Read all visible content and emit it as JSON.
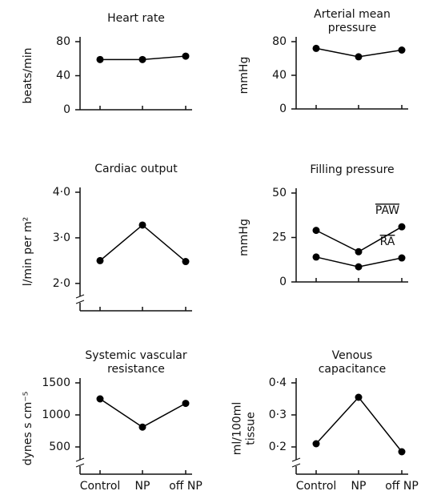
{
  "chart_data": [
    {
      "type": "line",
      "title": [
        "Heart rate"
      ],
      "ylabel": [
        "beats/min"
      ],
      "categories": [
        null,
        null,
        null
      ],
      "values": [
        59,
        59,
        63
      ],
      "color": "#000",
      "ylim": [
        0,
        80
      ],
      "yticks": [
        0,
        40,
        80
      ]
    },
    {
      "type": "line",
      "title": [
        "Arterial mean",
        "pressure"
      ],
      "ylabel": [
        "mmHg"
      ],
      "categories": [
        null,
        null,
        null
      ],
      "values": [
        72,
        62,
        70
      ],
      "color": "#000",
      "ylim": [
        0,
        80
      ],
      "yticks": [
        0,
        40,
        80
      ]
    },
    {
      "type": "line",
      "title": [
        "Cardiac output"
      ],
      "ylabel": [
        "l/min per m²"
      ],
      "categories": [
        null,
        null,
        null
      ],
      "values": [
        2.5,
        3.28,
        2.48
      ],
      "color": "#000",
      "ylim": [
        1.4,
        4.0
      ],
      "yticks": [
        {
          "value": 2,
          "label": "2·0"
        },
        {
          "value": 3,
          "label": "3·0"
        },
        {
          "value": 4,
          "label": "4·0"
        }
      ],
      "y_axis_break": true
    },
    {
      "type": "line",
      "title": [
        "Filling pressure"
      ],
      "ylabel": [
        "mmHg"
      ],
      "categories": [
        null,
        null,
        null
      ],
      "series": [
        {
          "name": "PAW",
          "color": "#000",
          "values": [
            29,
            17,
            31
          ]
        },
        {
          "name": "RA",
          "color": "#000",
          "values": [
            14,
            8.5,
            13.5
          ]
        }
      ],
      "ylim": [
        0,
        50
      ],
      "yticks": [
        0,
        25,
        50
      ]
    },
    {
      "type": "line",
      "title": [
        "Systemic vascular",
        "resistance"
      ],
      "ylabel": [
        "dynes s cm⁻⁵"
      ],
      "categories": [
        "Control",
        "NP",
        "off NP"
      ],
      "values": [
        1250,
        810,
        1180
      ],
      "color": "#000",
      "ylim": [
        75,
        1500
      ],
      "yticks": [
        500,
        1000,
        1500
      ],
      "y_axis_break": true
    },
    {
      "type": "line",
      "title": [
        "Venous",
        "capacitance"
      ],
      "ylabel": [
        "ml/100ml",
        "tissue"
      ],
      "categories": [
        "Control",
        "NP",
        "off NP"
      ],
      "values": [
        0.21,
        0.355,
        0.185
      ],
      "color": "#000",
      "ylim": [
        0.115,
        0.4
      ],
      "yticks": [
        {
          "value": 0.2,
          "label": "0·2"
        },
        {
          "value": 0.3,
          "label": "0·3"
        },
        {
          "value": 0.4,
          "label": "0·4"
        }
      ],
      "y_axis_break": true
    }
  ]
}
